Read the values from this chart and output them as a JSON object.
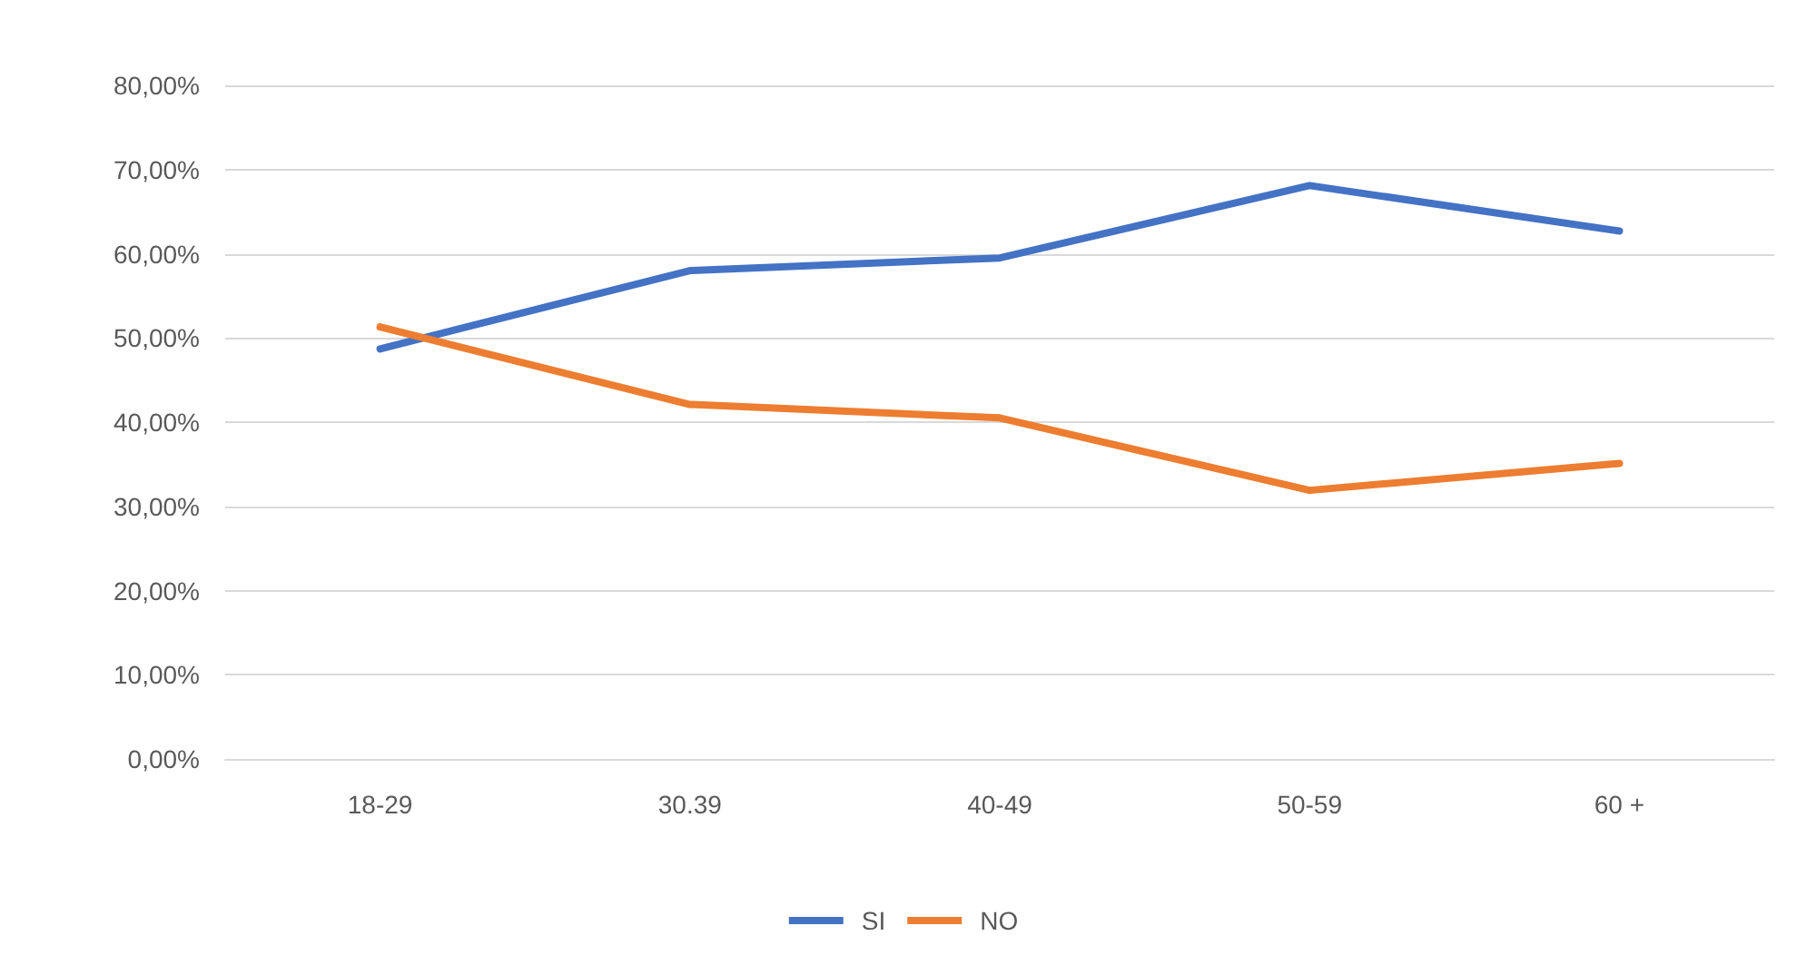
{
  "chart_data": {
    "type": "line",
    "categories": [
      "18-29",
      "30.39",
      "40-49",
      "50-59",
      "60 +"
    ],
    "series": [
      {
        "name": "SI",
        "color": "#4472c4",
        "values": [
          48.7,
          58.0,
          59.5,
          68.1,
          62.7
        ]
      },
      {
        "name": "NO",
        "color": "#ed7d31",
        "values": [
          51.3,
          42.1,
          40.5,
          31.9,
          35.1
        ]
      }
    ],
    "ylim": [
      0,
      80
    ],
    "yticks": [
      {
        "value": 0,
        "label": "0,00%"
      },
      {
        "value": 10,
        "label": "10,00%"
      },
      {
        "value": 20,
        "label": "20,00%"
      },
      {
        "value": 30,
        "label": "30,00%"
      },
      {
        "value": 40,
        "label": "40,00%"
      },
      {
        "value": 50,
        "label": "50,00%"
      },
      {
        "value": 60,
        "label": "60,00%"
      },
      {
        "value": 70,
        "label": "70,00%"
      },
      {
        "value": 80,
        "label": "80,00%"
      }
    ],
    "grid": "y",
    "legend": "bottom",
    "marker": "none",
    "line_style": "solid"
  }
}
